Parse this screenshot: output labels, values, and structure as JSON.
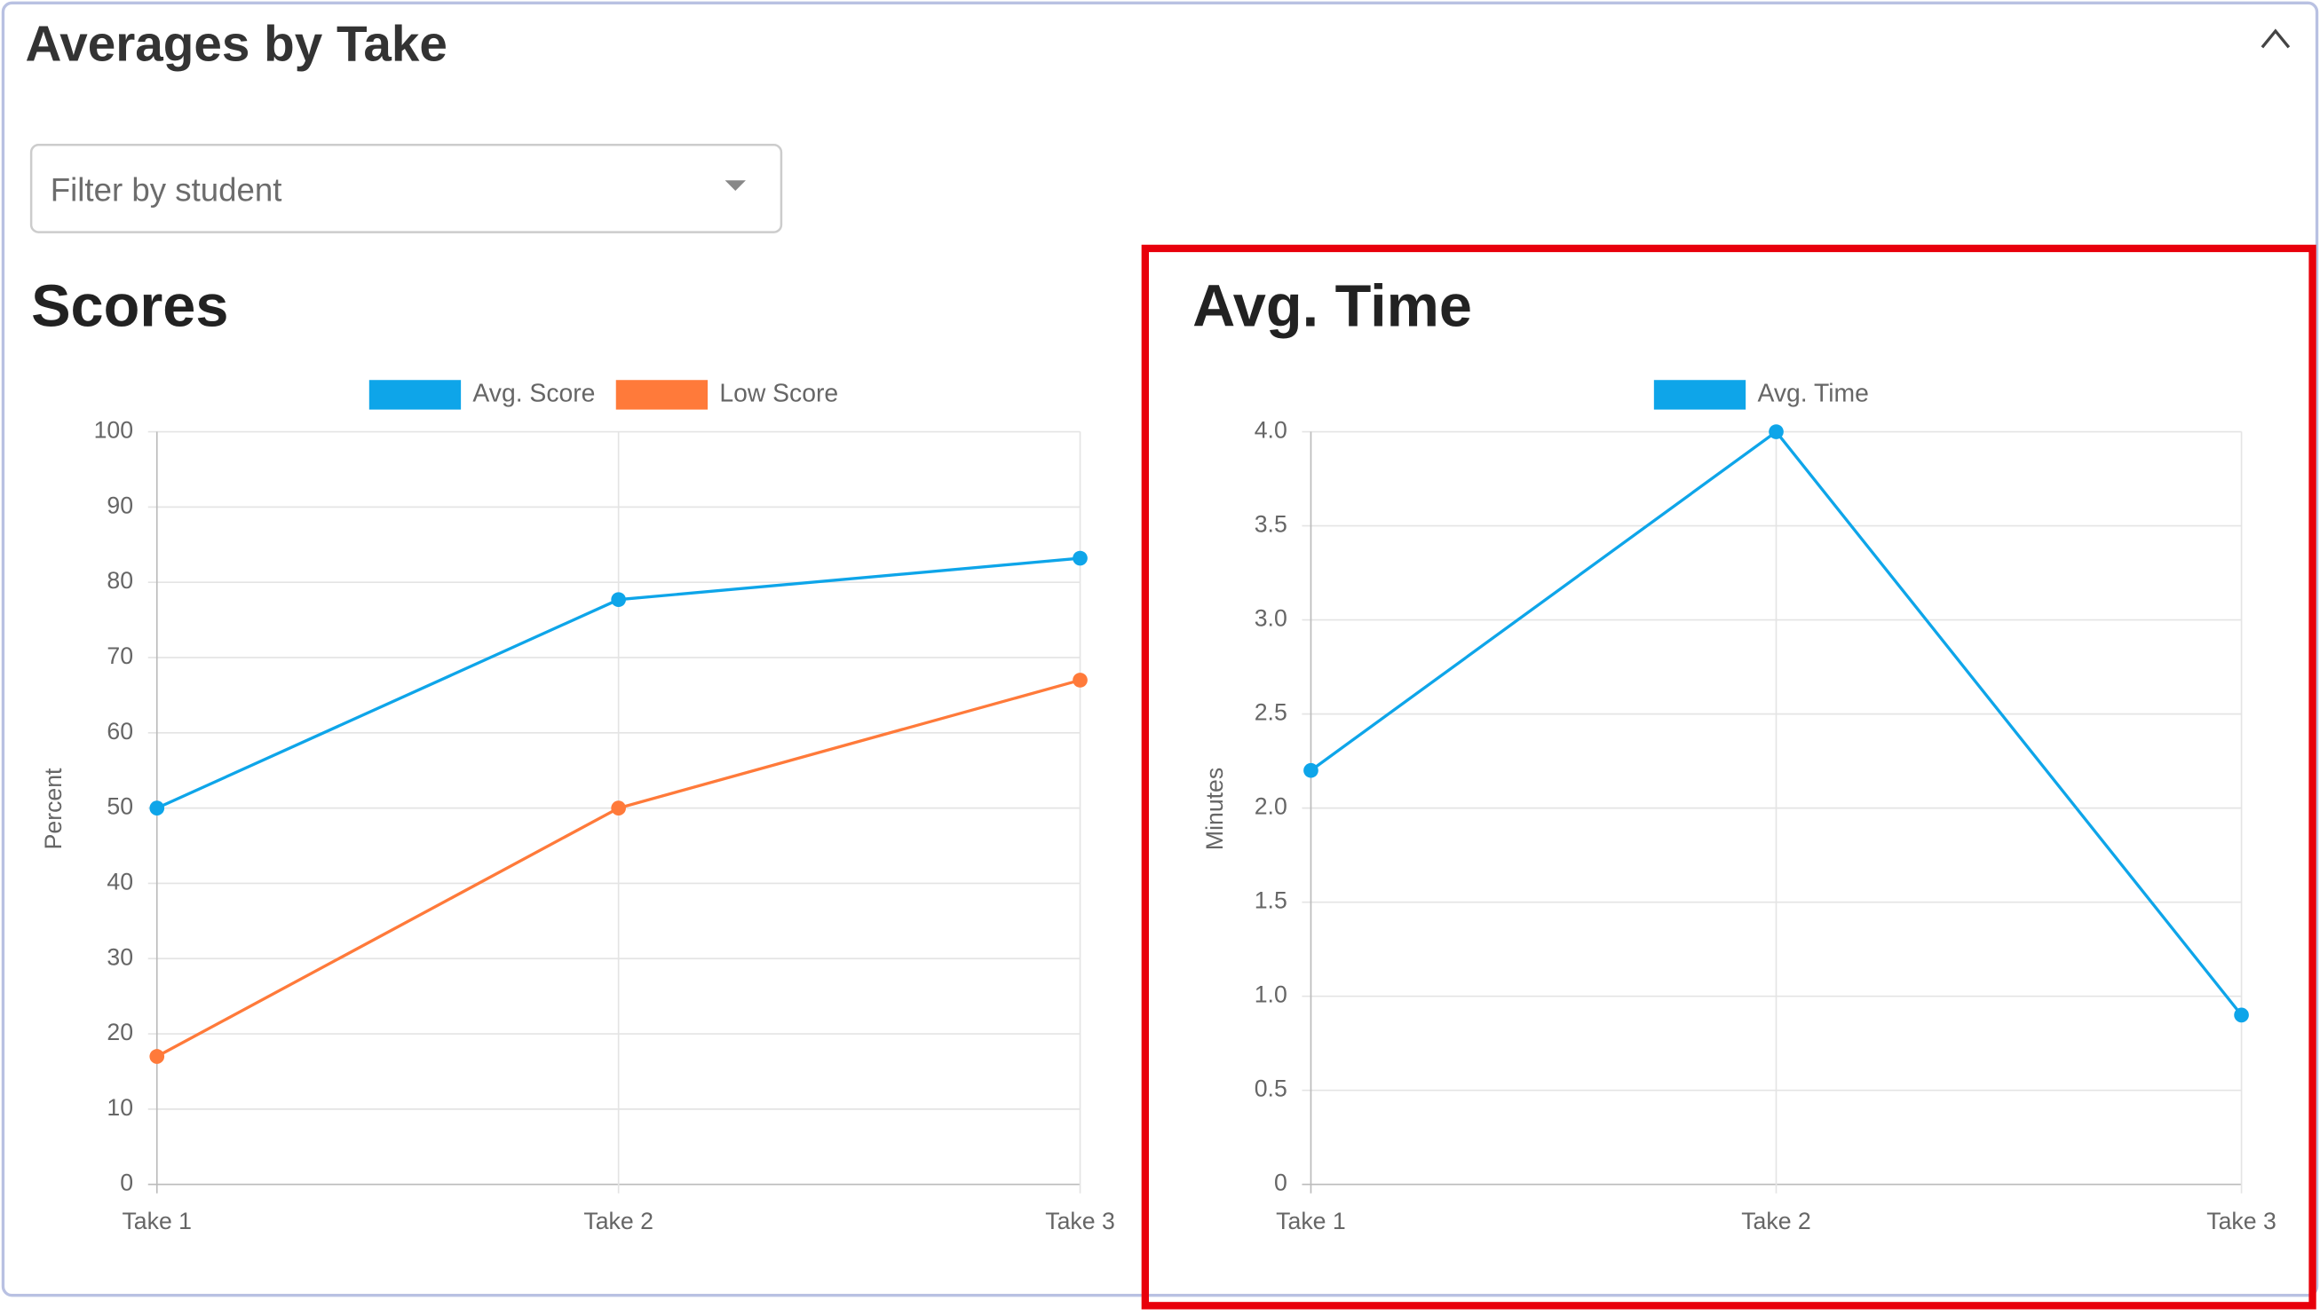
{
  "header": {
    "title": "Averages by Take"
  },
  "filter": {
    "placeholder": "Filter by student"
  },
  "chart_data": [
    {
      "type": "line",
      "title": "Scores",
      "y_label": "Percent",
      "categories": [
        "Take 1",
        "Take 2",
        "Take 3"
      ],
      "series": [
        {
          "name": "Avg. Score",
          "color": "#0ea5e9",
          "values": [
            50,
            77.7,
            83.2
          ]
        },
        {
          "name": "Low Score",
          "color": "#ff7a3a",
          "values": [
            17,
            50,
            67
          ]
        }
      ],
      "ylim": [
        0,
        100
      ],
      "yticks": [
        0,
        10,
        20,
        30,
        40,
        50,
        60,
        70,
        80,
        90,
        100
      ],
      "grid": true,
      "legend": "top"
    },
    {
      "type": "line",
      "title": "Avg. Time",
      "y_label": "Minutes",
      "categories": [
        "Take 1",
        "Take 2",
        "Take 3"
      ],
      "series": [
        {
          "name": "Avg. Time",
          "color": "#0ea5e9",
          "values": [
            2.2,
            4.0,
            0.9
          ]
        }
      ],
      "ylim": [
        0,
        4
      ],
      "yticks": [
        0,
        0.5,
        {
          "value": 1,
          "label": "1.0"
        },
        1.5,
        {
          "value": 2,
          "label": "2.0"
        },
        2.5,
        {
          "value": 3,
          "label": "3.0"
        },
        3.5,
        {
          "value": 4,
          "label": "4.0"
        }
      ],
      "grid": true,
      "legend": "top"
    }
  ]
}
